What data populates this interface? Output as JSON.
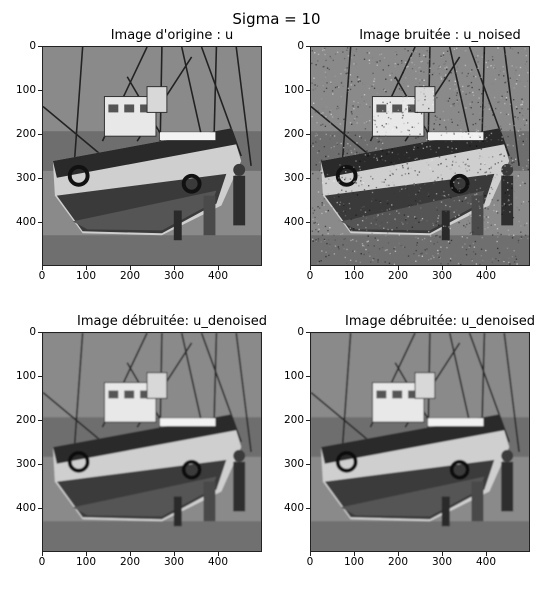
{
  "figure": {
    "title": "Sigma = 10"
  },
  "panels": [
    {
      "title": "Image d'origine : u",
      "variant": "original",
      "yticks": [
        "0",
        "100",
        "200",
        "300",
        "400"
      ],
      "xticks": [
        "0",
        "100",
        "200",
        "300",
        "400"
      ]
    },
    {
      "title": "Image bruitée : u_noised",
      "variant": "noised",
      "yticks": [
        "0",
        "100",
        "200",
        "300",
        "400"
      ],
      "xticks": [
        "0",
        "100",
        "200",
        "300",
        "400"
      ]
    },
    {
      "title": "Image débruitée: u_denoised",
      "variant": "denoised",
      "yticks": [
        "0",
        "100",
        "200",
        "300",
        "400"
      ],
      "xticks": [
        "0",
        "100",
        "200",
        "300",
        "400"
      ]
    },
    {
      "title": "Image débruitée: u_denoised",
      "variant": "denoised",
      "yticks": [
        "0",
        "100",
        "200",
        "300",
        "400"
      ],
      "xticks": [
        "0",
        "100",
        "200",
        "300",
        "400"
      ]
    }
  ],
  "colors": {
    "sky": "#8a8a8a",
    "hull_dark": "#2a2a2a",
    "hull_light": "#cfcfcf",
    "cabin": "#e8e8e8",
    "ground": "#6f6f6f"
  }
}
